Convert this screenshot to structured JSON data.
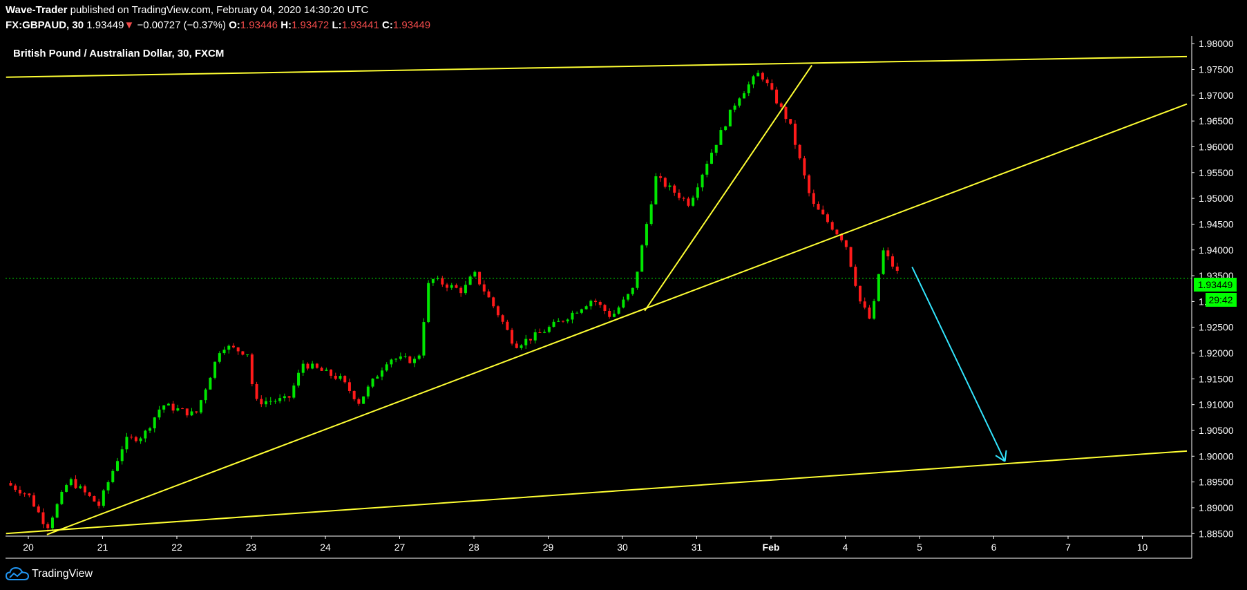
{
  "header": {
    "author": "Wave-Trader",
    "published_text": "published on TradingView.com, February 04, 2020 14:30:20 UTC",
    "symbol": "FX:GBPAUD, 30",
    "last": "1.93449",
    "change_arrow": "▼",
    "change": "−0.00727 (−0.37%)",
    "o_label": "O:",
    "o": "1.93446",
    "h_label": "H:",
    "h": "1.93472",
    "l_label": "L:",
    "l": "1.93441",
    "c_label": "C:",
    "c": "1.93449"
  },
  "footer": {
    "brand": "TradingView",
    "icon": "tradingview-cloud-icon"
  },
  "colors": {
    "up": "#00e600",
    "down": "#ff1a1a",
    "trendline": "#ffff33",
    "arrow": "#33e6ff",
    "price_label_bg": "#00ff00",
    "axis": "#ffffff",
    "background": "#000000"
  },
  "chart_data": {
    "type": "candlestick",
    "title": "British Pound / Australian Dollar, 30, FXCM",
    "ylim": [
      1.8845,
      1.9815
    ],
    "yticks": [
      "1.98000",
      "1.97500",
      "1.97000",
      "1.96500",
      "1.96000",
      "1.95500",
      "1.95000",
      "1.94500",
      "1.94000",
      "1.93500",
      "1.93000",
      "1.92500",
      "1.92000",
      "1.91500",
      "1.91000",
      "1.90500",
      "1.90000",
      "1.89500",
      "1.89000",
      "1.88500"
    ],
    "xticks": [
      "20",
      "21",
      "22",
      "23",
      "24",
      "27",
      "28",
      "29",
      "30",
      "31",
      "Feb",
      "4",
      "5",
      "6",
      "7",
      "10"
    ],
    "last_price_label": "1.93449",
    "countdown_label": "29:42",
    "current_price": 1.93449,
    "price_path": [
      [
        -0.3,
        1.8948
      ],
      [
        0.0,
        1.8925
      ],
      [
        0.25,
        1.8862
      ],
      [
        0.55,
        1.8955
      ],
      [
        0.95,
        1.8905
      ],
      [
        1.3,
        1.903
      ],
      [
        1.55,
        1.904
      ],
      [
        1.8,
        1.91
      ],
      [
        2.25,
        1.908
      ],
      [
        2.6,
        1.9215
      ],
      [
        2.95,
        1.92
      ],
      [
        3.05,
        1.9105
      ],
      [
        3.5,
        1.911
      ],
      [
        3.7,
        1.918
      ],
      [
        4.2,
        1.915
      ],
      [
        4.45,
        1.9105
      ],
      [
        4.85,
        1.919
      ],
      [
        5.25,
        1.9185
      ],
      [
        5.4,
        1.9345
      ],
      [
        5.85,
        1.932
      ],
      [
        6.0,
        1.9355
      ],
      [
        6.35,
        1.927
      ],
      [
        6.55,
        1.9215
      ],
      [
        6.85,
        1.9235
      ],
      [
        7.2,
        1.9265
      ],
      [
        7.6,
        1.9305
      ],
      [
        7.85,
        1.927
      ],
      [
        8.15,
        1.9325
      ],
      [
        8.45,
        1.954
      ],
      [
        8.9,
        1.949
      ],
      [
        9.15,
        1.9575
      ],
      [
        9.55,
        1.9695
      ],
      [
        9.85,
        1.9745
      ],
      [
        10.25,
        1.9645
      ],
      [
        10.55,
        1.949
      ],
      [
        11.0,
        1.9415
      ],
      [
        11.2,
        1.93
      ],
      [
        11.35,
        1.926
      ],
      [
        11.5,
        1.94
      ],
      [
        11.75,
        1.9345
      ]
    ],
    "trendlines": [
      {
        "name": "channel-top",
        "from": [
          -0.3,
          1.9735
        ],
        "to": [
          15.6,
          1.9775
        ]
      },
      {
        "name": "channel-bottom",
        "from": [
          -0.3,
          1.885
        ],
        "to": [
          15.6,
          1.901
        ]
      },
      {
        "name": "rising-support",
        "from": [
          0.25,
          1.8848
        ],
        "to": [
          15.6,
          1.9683
        ]
      },
      {
        "name": "steep-support",
        "from": [
          8.3,
          1.9282
        ],
        "to": [
          10.55,
          1.9758
        ]
      }
    ],
    "arrow": {
      "from": [
        11.9,
        1.9367
      ],
      "to": [
        13.15,
        1.899
      ]
    }
  }
}
